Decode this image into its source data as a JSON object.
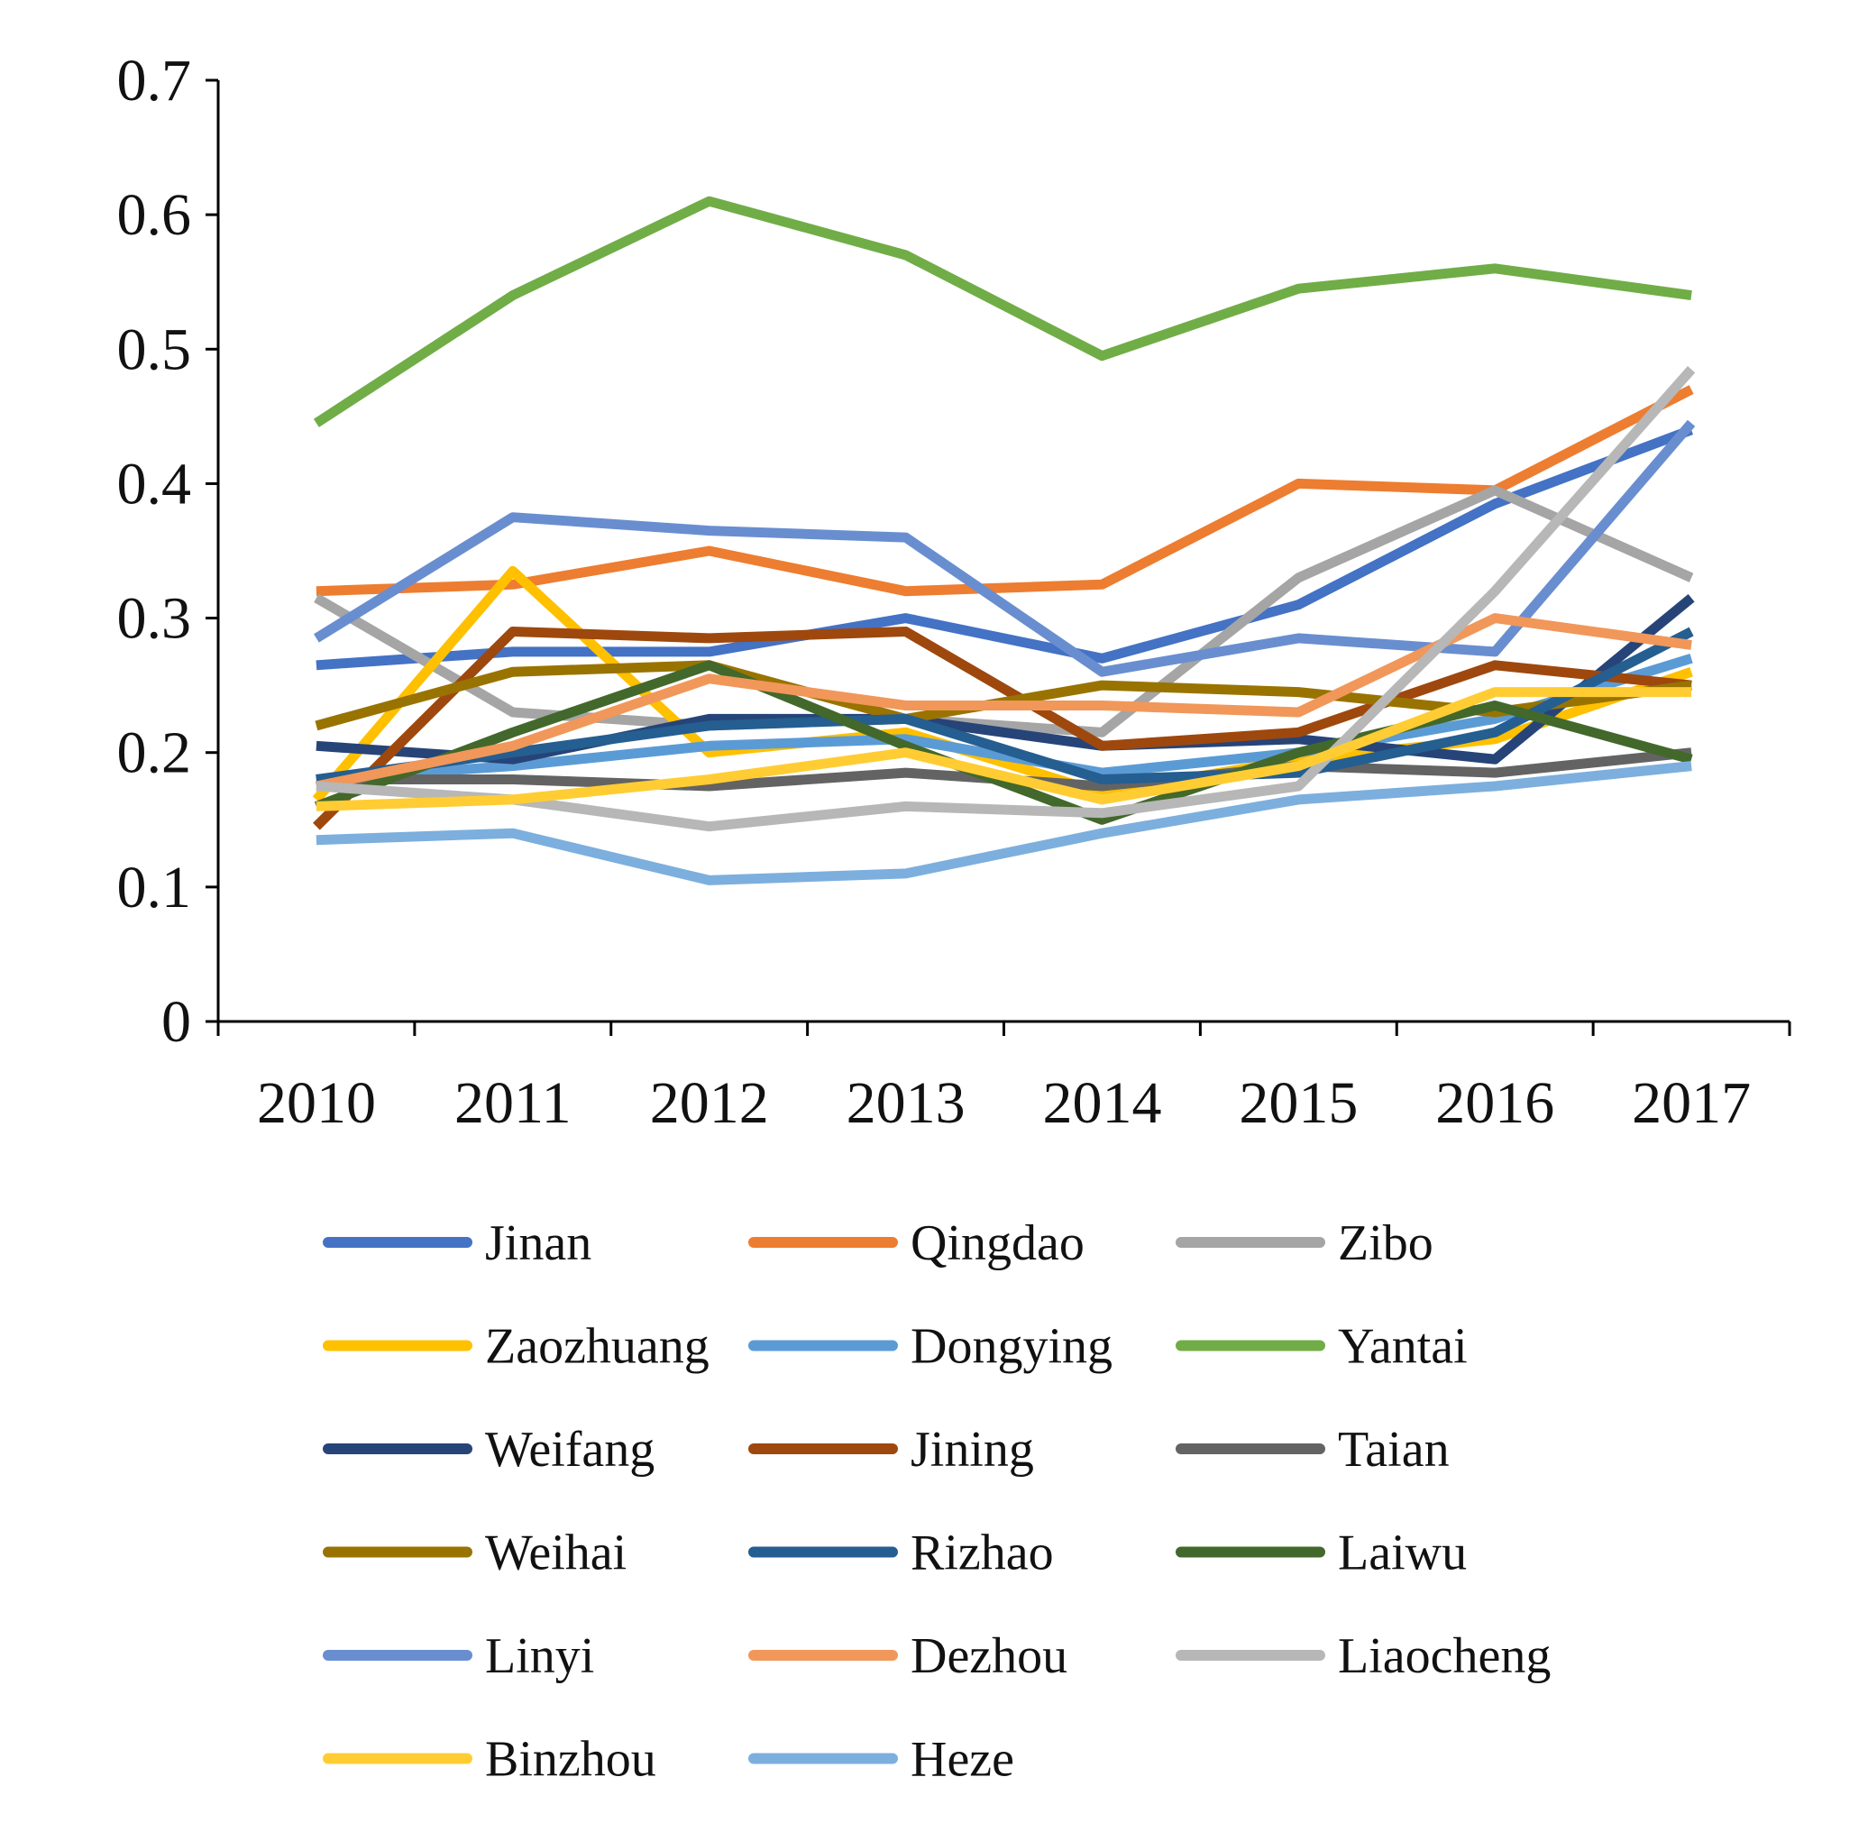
{
  "chart_data": {
    "type": "line",
    "title": "",
    "xlabel": "",
    "ylabel": "",
    "x": [
      "2010",
      "2011",
      "2012",
      "2013",
      "2014",
      "2015",
      "2016",
      "2017"
    ],
    "ylim": [
      0,
      0.7
    ],
    "yticks": [
      "0",
      "0.1",
      "0.2",
      "0.3",
      "0.4",
      "0.5",
      "0.6",
      "0.7"
    ],
    "grid": false,
    "legend_position": "bottom",
    "series": [
      {
        "name": "Jinan",
        "color": "#4472C4",
        "values": [
          0.265,
          0.275,
          0.275,
          0.3,
          0.27,
          0.31,
          0.385,
          0.44
        ]
      },
      {
        "name": "Qingdao",
        "color": "#ED7D31",
        "values": [
          0.32,
          0.325,
          0.35,
          0.32,
          0.325,
          0.4,
          0.395,
          0.47
        ]
      },
      {
        "name": "Zibo",
        "color": "#A5A5A5",
        "values": [
          0.315,
          0.23,
          0.22,
          0.225,
          0.215,
          0.33,
          0.395,
          0.33
        ]
      },
      {
        "name": "Zaozhuang",
        "color": "#FFC000",
        "values": [
          0.165,
          0.335,
          0.2,
          0.215,
          0.17,
          0.195,
          0.21,
          0.26
        ]
      },
      {
        "name": "Dongying",
        "color": "#5B9BD5",
        "values": [
          0.18,
          0.19,
          0.205,
          0.21,
          0.185,
          0.2,
          0.225,
          0.27
        ]
      },
      {
        "name": "Yantai",
        "color": "#70AD47",
        "values": [
          0.445,
          0.54,
          0.61,
          0.57,
          0.495,
          0.545,
          0.56,
          0.54
        ]
      },
      {
        "name": "Weifang",
        "color": "#264478",
        "values": [
          0.205,
          0.195,
          0.225,
          0.225,
          0.205,
          0.21,
          0.195,
          0.315
        ]
      },
      {
        "name": "Jining",
        "color": "#9E480E",
        "values": [
          0.145,
          0.29,
          0.285,
          0.29,
          0.205,
          0.215,
          0.265,
          0.25
        ]
      },
      {
        "name": "Taian",
        "color": "#636363",
        "values": [
          0.18,
          0.18,
          0.175,
          0.185,
          0.175,
          0.19,
          0.185,
          0.2
        ]
      },
      {
        "name": "Weihai",
        "color": "#997300",
        "values": [
          0.22,
          0.26,
          0.265,
          0.225,
          0.25,
          0.245,
          0.23,
          0.25
        ]
      },
      {
        "name": "Rizhao",
        "color": "#255E91",
        "values": [
          0.18,
          0.2,
          0.22,
          0.225,
          0.18,
          0.185,
          0.215,
          0.29
        ]
      },
      {
        "name": "Laiwu",
        "color": "#43682B",
        "values": [
          0.16,
          0.215,
          0.265,
          0.205,
          0.15,
          0.2,
          0.235,
          0.195
        ]
      },
      {
        "name": "Linyi",
        "color": "#698ED0",
        "values": [
          0.285,
          0.375,
          0.365,
          0.36,
          0.26,
          0.285,
          0.275,
          0.445
        ]
      },
      {
        "name": "Dezhou",
        "color": "#F1975A",
        "values": [
          0.175,
          0.205,
          0.255,
          0.235,
          0.235,
          0.23,
          0.3,
          0.28
        ]
      },
      {
        "name": "Liaocheng",
        "color": "#B7B7B7",
        "values": [
          0.175,
          0.165,
          0.145,
          0.16,
          0.155,
          0.175,
          0.32,
          0.485
        ]
      },
      {
        "name": "Binzhou",
        "color": "#FFCD33",
        "values": [
          0.16,
          0.165,
          0.18,
          0.2,
          0.165,
          0.19,
          0.245,
          0.245
        ]
      },
      {
        "name": "Heze",
        "color": "#7CAFDD",
        "values": [
          0.135,
          0.14,
          0.105,
          0.11,
          0.14,
          0.165,
          0.175,
          0.19
        ]
      }
    ]
  }
}
